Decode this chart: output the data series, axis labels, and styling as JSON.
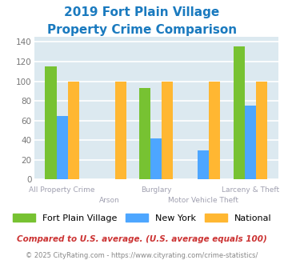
{
  "title_line1": "2019 Fort Plain Village",
  "title_line2": "Property Crime Comparison",
  "categories": [
    "All Property Crime",
    "Arson",
    "Burglary",
    "Motor Vehicle Theft",
    "Larceny & Theft"
  ],
  "cat_row": [
    1,
    0,
    1,
    0,
    1
  ],
  "series": {
    "Fort Plain Village": [
      115,
      0,
      93,
      0,
      135
    ],
    "New York": [
      65,
      0,
      42,
      30,
      75
    ],
    "National": [
      100,
      100,
      100,
      100,
      100
    ]
  },
  "colors": {
    "Fort Plain Village": "#77c232",
    "New York": "#4da6ff",
    "National": "#ffb732"
  },
  "ylim": [
    0,
    145
  ],
  "yticks": [
    0,
    20,
    40,
    60,
    80,
    100,
    120,
    140
  ],
  "footnote1": "Compared to U.S. average. (U.S. average equals 100)",
  "footnote2": "© 2025 CityRating.com - https://www.cityrating.com/crime-statistics/",
  "plot_bg_color": "#dce9f0",
  "title_color": "#1a7abf",
  "xlabel_color": "#a0a0b0",
  "ylabel_color": "#777777",
  "footnote1_color": "#cc3333",
  "footnote2_color": "#888888"
}
